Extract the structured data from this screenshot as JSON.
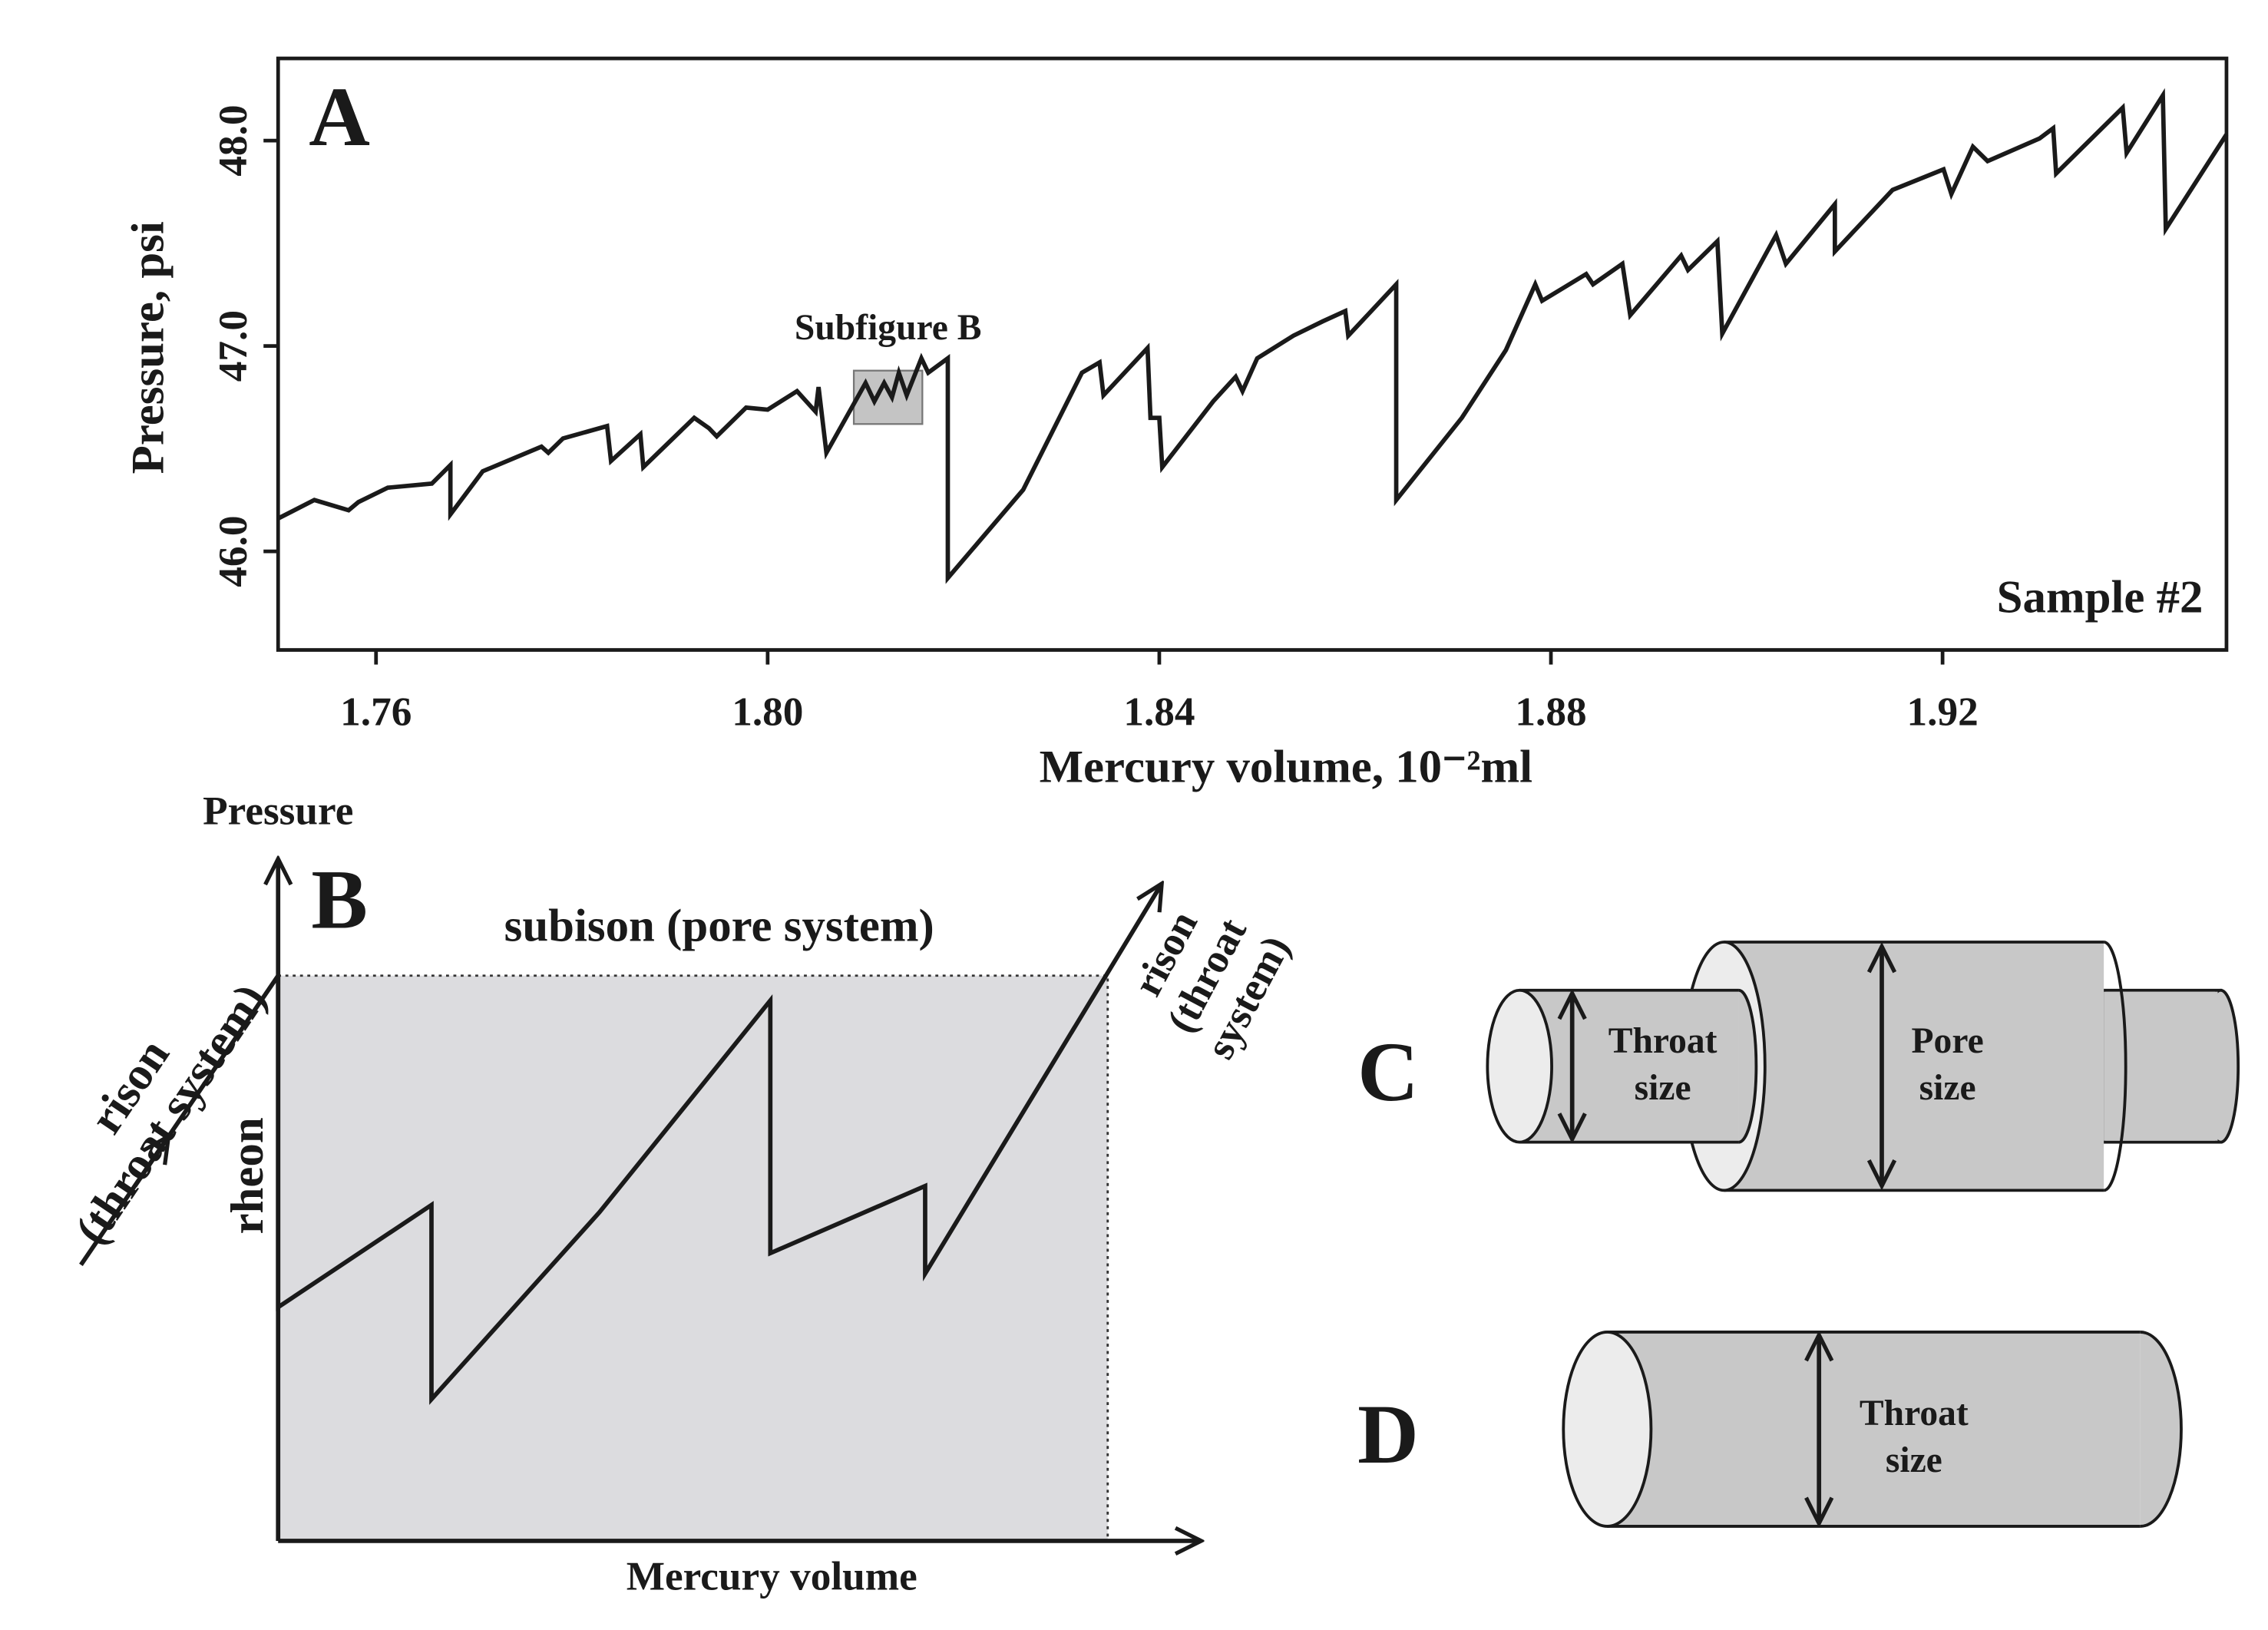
{
  "chart_data": {
    "type": "line",
    "panel": "A",
    "xlabel": "Mercury volume, 10⁻²ml",
    "ylabel": "Pressure, psi",
    "annotation": "Sample #2",
    "color": "#1a1a1a",
    "xlim": [
      1.75,
      1.949
    ],
    "ylim": [
      45.52,
      48.4
    ],
    "xticks": [
      1.76,
      {
        "value": 1.8,
        "label": "1.80"
      },
      1.84,
      1.88,
      1.92
    ],
    "yticks": [
      {
        "value": 46,
        "label": "46.0"
      },
      {
        "value": 47,
        "label": "47.0"
      },
      {
        "value": 48,
        "label": "48.0"
      }
    ],
    "highlight": {
      "label": "Subfigure B",
      "xlim": [
        1.8088,
        1.8158
      ],
      "ylim": [
        46.62,
        46.88
      ]
    },
    "x": [
      1.75,
      1.7537,
      1.7572,
      1.7582,
      1.7612,
      1.7657,
      1.7676,
      1.7676,
      1.7709,
      1.7769,
      1.7776,
      1.7791,
      1.7836,
      1.784,
      1.787,
      1.7873,
      1.7925,
      1.794,
      1.7948,
      1.7978,
      1.8,
      1.803,
      1.8049,
      1.8052,
      1.806,
      1.81,
      1.8109,
      1.8119,
      1.8127,
      1.8134,
      1.8142,
      1.8157,
      1.8164,
      1.8184,
      1.8184,
      1.8261,
      1.8321,
      1.8339,
      1.8343,
      1.8388,
      1.8391,
      1.84,
      1.8403,
      1.8455,
      1.8478,
      1.8485,
      1.85,
      1.8537,
      1.8567,
      1.859,
      1.8593,
      1.8642,
      1.8642,
      1.8709,
      1.8754,
      1.8784,
      1.8791,
      1.8836,
      1.8843,
      1.8873,
      1.8881,
      1.8933,
      1.894,
      1.897,
      1.8975,
      1.903,
      1.904,
      1.909,
      1.909,
      1.9149,
      1.9201,
      1.9209,
      1.9231,
      1.9246,
      1.9299,
      1.9313,
      1.9316,
      1.9384,
      1.9388,
      1.9425,
      1.9428,
      1.949
    ],
    "values": [
      46.16,
      46.25,
      46.2,
      46.24,
      46.31,
      46.33,
      46.42,
      46.18,
      46.39,
      46.51,
      46.48,
      46.55,
      46.61,
      46.44,
      46.57,
      46.41,
      46.65,
      46.6,
      46.56,
      46.7,
      46.69,
      46.78,
      46.68,
      46.8,
      46.48,
      46.82,
      46.73,
      46.82,
      46.75,
      46.87,
      46.76,
      46.94,
      46.87,
      46.94,
      45.87,
      46.3,
      46.87,
      46.92,
      46.76,
      46.99,
      46.65,
      46.65,
      46.41,
      46.73,
      46.85,
      46.78,
      46.94,
      47.05,
      47.12,
      47.17,
      47.05,
      47.3,
      46.25,
      46.65,
      46.98,
      47.3,
      47.22,
      47.35,
      47.3,
      47.4,
      47.15,
      47.44,
      47.37,
      47.51,
      47.06,
      47.54,
      47.4,
      47.69,
      47.46,
      47.76,
      47.86,
      47.74,
      47.97,
      47.9,
      48.01,
      48.06,
      47.84,
      48.16,
      47.94,
      48.22,
      47.57,
      48.03
    ]
  },
  "panel_b": {
    "letter": "B",
    "y_axis": "Pressure",
    "x_axis": "Mercury volume",
    "subison": "subison (pore system)",
    "rheon": "rheon",
    "rison_left": [
      "rison",
      "(throat system)"
    ],
    "rison_right": [
      "rison",
      "(throat",
      "system)"
    ]
  },
  "panel_c": {
    "letter": "C",
    "throat": [
      "Throat",
      "size"
    ],
    "pore": [
      "Pore",
      "size"
    ]
  },
  "panel_d": {
    "letter": "D",
    "throat": [
      "Throat",
      "size"
    ]
  }
}
